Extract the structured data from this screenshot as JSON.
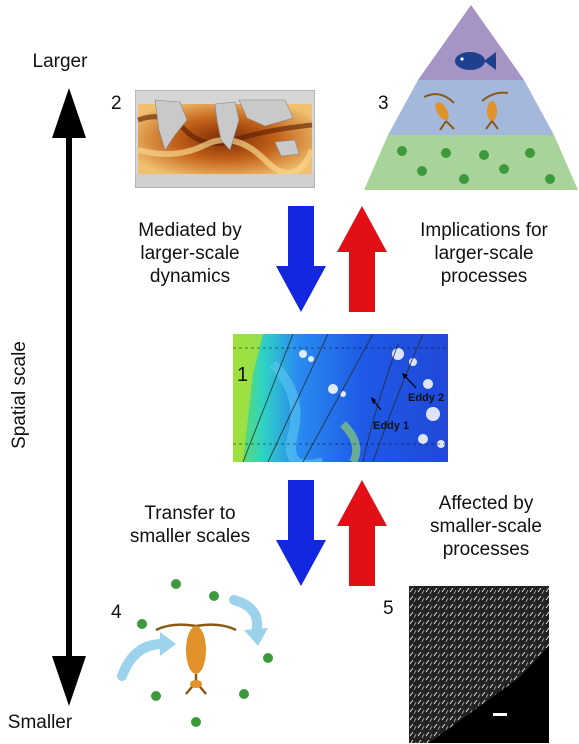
{
  "axis": {
    "top_label": "Larger",
    "bottom_label": "Smaller",
    "side_label": "Spatial scale"
  },
  "panels": {
    "p1": {
      "number": "1",
      "eddy1": "Eddy 1",
      "eddy2": "Eddy 2"
    },
    "p2": {
      "number": "2"
    },
    "p3": {
      "number": "3"
    },
    "p4": {
      "number": "4"
    },
    "p5": {
      "number": "5"
    }
  },
  "arrows": {
    "top_left": {
      "lines": [
        "Mediated by",
        "larger-scale",
        "dynamics"
      ],
      "color": "#1326e0",
      "direction": "down"
    },
    "top_right": {
      "lines": [
        "Implications for",
        "larger-scale",
        "processes"
      ],
      "color": "#e30f16",
      "direction": "up"
    },
    "bottom_left": {
      "lines": [
        "Transfer to",
        "smaller scales"
      ],
      "color": "#1326e0",
      "direction": "down"
    },
    "bottom_right": {
      "lines": [
        "Affected by",
        "smaller-scale",
        "processes"
      ],
      "color": "#e30f16",
      "direction": "up"
    }
  },
  "pyramid_colors": {
    "top": "#a694c4",
    "middle": "#a4b8dc",
    "bottom": "#a8d49a"
  },
  "icons": [
    "fish-icon",
    "copepod-icon",
    "phytoplankton-icon",
    "flow-arrow-icon"
  ]
}
